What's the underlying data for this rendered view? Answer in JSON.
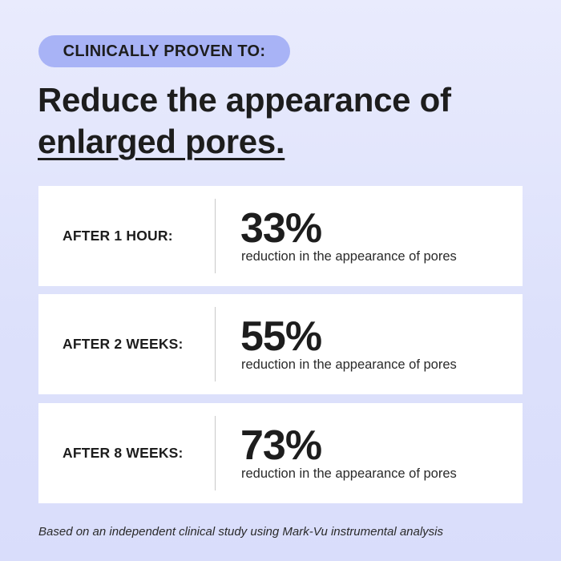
{
  "badge": "CLINICALLY PROVEN TO:",
  "headline": {
    "line1": "Reduce the appearance of",
    "line2": "enlarged pores."
  },
  "results": [
    {
      "period": "AFTER 1 HOUR:",
      "percent": "33%",
      "description": "reduction in the appearance of pores"
    },
    {
      "period": "AFTER 2 WEEKS:",
      "percent": "55%",
      "description": "reduction in the appearance of pores"
    },
    {
      "period": "AFTER 8 WEEKS:",
      "percent": "73%",
      "description": "reduction in the appearance of pores"
    }
  ],
  "footnote": "Based on an independent clinical study using Mark-Vu instrumental analysis",
  "colors": {
    "badge_bg": "#a8b3f6",
    "background": "#e3e6fc",
    "card_bg": "#ffffff",
    "text": "#1d1d1d"
  }
}
